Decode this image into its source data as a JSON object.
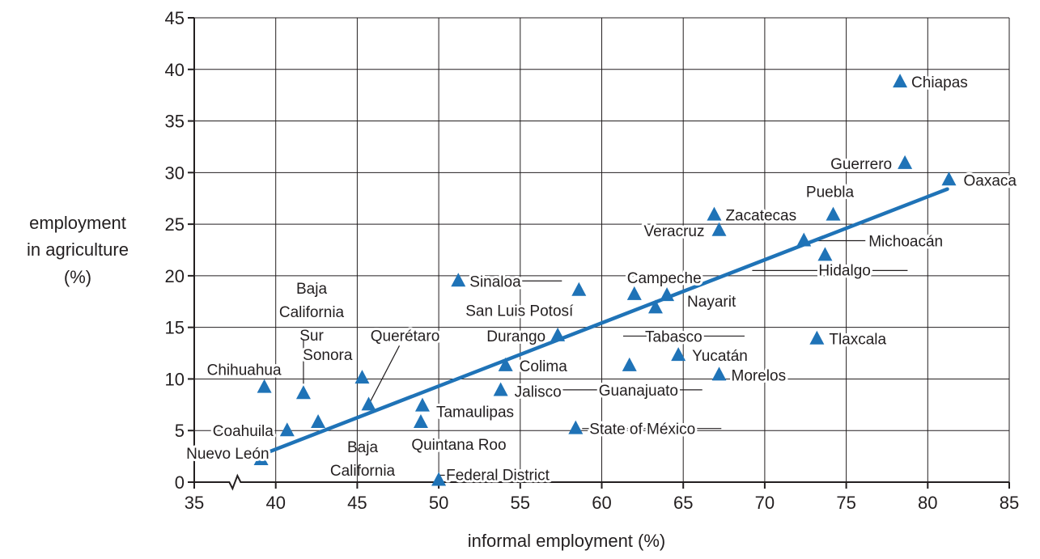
{
  "chart_data": {
    "type": "scatter",
    "title": "",
    "xlabel": "informal employment (%)",
    "ylabel_lines": [
      "employment",
      "in agriculture",
      "(%)"
    ],
    "xlim": [
      35,
      85
    ],
    "ylim": [
      0,
      45
    ],
    "x_ticks": [
      35,
      40,
      45,
      50,
      55,
      60,
      65,
      70,
      75,
      80,
      85
    ],
    "y_ticks": [
      0,
      5,
      10,
      15,
      20,
      25,
      30,
      35,
      40,
      45
    ],
    "x_axis_break_between": [
      35,
      40
    ],
    "grid": true,
    "marker_color": "#1f73b7",
    "trendline": {
      "color": "#1f73b7",
      "x": [
        39.2,
        81.2
      ],
      "y": [
        2.7,
        28.4
      ]
    },
    "points": [
      {
        "label": "Chiapas",
        "x": 78.3,
        "y": 38.8
      },
      {
        "label": "Guerrero",
        "x": 78.6,
        "y": 30.9
      },
      {
        "label": "Oaxaca",
        "x": 81.3,
        "y": 29.3
      },
      {
        "label": "Puebla",
        "x": 74.2,
        "y": 25.9
      },
      {
        "label": "Zacatecas",
        "x": 66.9,
        "y": 25.9
      },
      {
        "label": "Veracruz",
        "x": 67.2,
        "y": 24.4
      },
      {
        "label": "Michoacán",
        "x": 72.4,
        "y": 23.4
      },
      {
        "label": "Hidalgo",
        "x": 73.7,
        "y": 22.0
      },
      {
        "label": "Sinaloa",
        "x": 51.2,
        "y": 19.5
      },
      {
        "label": "San Luis Potosí",
        "x": 58.6,
        "y": 18.6
      },
      {
        "label": "Campeche",
        "x": 62.0,
        "y": 18.2
      },
      {
        "label": "Nayarit",
        "x": 64.0,
        "y": 18.1
      },
      {
        "label": "Tabasco",
        "x": 63.3,
        "y": 16.9
      },
      {
        "label": "Durango",
        "x": 57.3,
        "y": 14.2
      },
      {
        "label": "Tlaxcala",
        "x": 73.2,
        "y": 13.9
      },
      {
        "label": "Yucatán",
        "x": 64.7,
        "y": 12.3
      },
      {
        "label": "Colima",
        "x": 54.1,
        "y": 11.3
      },
      {
        "label": "Guanajuato",
        "x": 61.7,
        "y": 11.3
      },
      {
        "label": "Morelos",
        "x": 67.2,
        "y": 10.4
      },
      {
        "label": "Sonora",
        "x": 45.3,
        "y": 10.1
      },
      {
        "label": "Chihuahua",
        "x": 39.3,
        "y": 9.2
      },
      {
        "label": "Jalisco",
        "x": 53.8,
        "y": 8.9
      },
      {
        "label": "Baja California Sur",
        "x": 41.7,
        "y": 8.6
      },
      {
        "label": "Querétaro",
        "x": 45.7,
        "y": 7.5
      },
      {
        "label": "Tamaulipas",
        "x": 49.0,
        "y": 7.4
      },
      {
        "label": "Baja California",
        "x": 42.6,
        "y": 5.8
      },
      {
        "label": "Quintana Roo",
        "x": 48.9,
        "y": 5.8
      },
      {
        "label": "State of México",
        "x": 58.4,
        "y": 5.2
      },
      {
        "label": "Coahuila",
        "x": 40.7,
        "y": 5.0
      },
      {
        "label": "Nuevo León",
        "x": 39.1,
        "y": 2.2
      },
      {
        "label": "Federal District",
        "x": 50.0,
        "y": 0.2
      }
    ]
  }
}
